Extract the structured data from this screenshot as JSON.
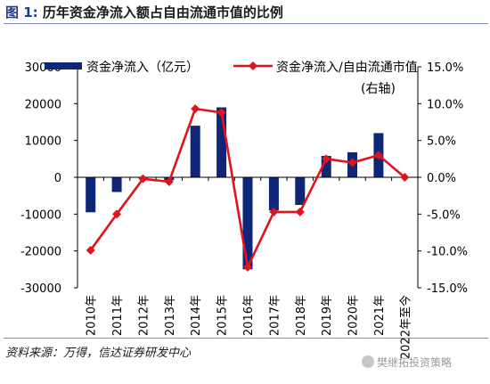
{
  "header": {
    "figure_label": "图 1:",
    "title": "历年资金净流入额占自由流通市值的比例"
  },
  "footer": {
    "source": "资料来源：万得，信达证券研发中心",
    "watermark": "樊继拓投资策略"
  },
  "colors": {
    "bar": "#0d2677",
    "line": "#e0141e",
    "axis": "#000000"
  },
  "chart_data": {
    "type": "bar+line",
    "title": "",
    "categories": [
      "2010年",
      "2011年",
      "2012年",
      "2013年",
      "2014年",
      "2015年",
      "2016年",
      "2017年",
      "2018年",
      "2019年",
      "2020年",
      "2021年",
      "2022年至今"
    ],
    "series": [
      {
        "name": "资金净流入（亿元）",
        "type": "bar",
        "axis": "left",
        "values": [
          -9500,
          -4000,
          -200,
          -800,
          14000,
          19000,
          -25000,
          -9000,
          -7500,
          5800,
          6800,
          12000,
          -100
        ]
      },
      {
        "name": "资金净流入/自由流通市值",
        "axis_note": "(右轴)",
        "type": "line",
        "axis": "right",
        "values": [
          -9.9,
          -5.0,
          -0.2,
          -0.6,
          9.3,
          8.8,
          -12.2,
          -4.7,
          -4.7,
          2.5,
          2.0,
          3.0,
          0.0
        ]
      }
    ],
    "left_axis": {
      "ylim": [
        -30000,
        30000
      ],
      "ticks": [
        30000,
        20000,
        10000,
        0,
        -10000,
        -20000,
        -30000
      ],
      "tick_labels": [
        "30000",
        "20000",
        "10000",
        "0",
        "-10000",
        "-20000",
        "-30000"
      ]
    },
    "right_axis": {
      "ylim": [
        -15,
        15
      ],
      "ticks": [
        15,
        10,
        5,
        0,
        -5,
        -10,
        -15
      ],
      "tick_labels": [
        "15.0%",
        "10.0%",
        "5.0%",
        "0.0%",
        "-5.0%",
        "-10.0%",
        "-15.0%"
      ]
    },
    "grid": false,
    "legend_position": "top"
  }
}
